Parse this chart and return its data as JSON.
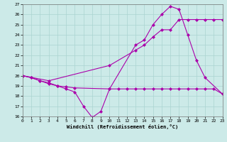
{
  "xlabel": "Windchill (Refroidissement éolien,°C)",
  "xlim": [
    0,
    23
  ],
  "ylim": [
    16,
    27
  ],
  "yticks": [
    16,
    17,
    18,
    19,
    20,
    21,
    22,
    23,
    24,
    25,
    26,
    27
  ],
  "xticks": [
    0,
    1,
    2,
    3,
    4,
    5,
    6,
    7,
    8,
    9,
    10,
    11,
    12,
    13,
    14,
    15,
    16,
    17,
    18,
    19,
    20,
    21,
    22,
    23
  ],
  "bg_color": "#cceae8",
  "line_color": "#aa00aa",
  "grid_color": "#aad4d0",
  "lines": [
    {
      "x": [
        0,
        1,
        2,
        3,
        4,
        5,
        6,
        7,
        8,
        9,
        10,
        13,
        14,
        15,
        16,
        17,
        18,
        19,
        20,
        21,
        23
      ],
      "y": [
        20,
        19.8,
        19.5,
        19.3,
        19.0,
        18.7,
        18.4,
        17.0,
        15.9,
        16.5,
        18.7,
        23.0,
        23.5,
        25.0,
        26.0,
        26.8,
        26.5,
        24.0,
        21.5,
        19.8,
        18.2
      ]
    },
    {
      "x": [
        0,
        1,
        2,
        3,
        4,
        5,
        6,
        10,
        11,
        12,
        13,
        14,
        15,
        16,
        17,
        18,
        19,
        20,
        21,
        22,
        23
      ],
      "y": [
        20,
        19.8,
        19.5,
        19.2,
        19.0,
        18.9,
        18.8,
        18.7,
        18.7,
        18.7,
        18.7,
        18.7,
        18.7,
        18.7,
        18.7,
        18.7,
        18.7,
        18.7,
        18.7,
        18.7,
        18.2
      ]
    },
    {
      "x": [
        0,
        3,
        10,
        13,
        14,
        15,
        16,
        17,
        18,
        19,
        20,
        21,
        22,
        23
      ],
      "y": [
        20,
        19.5,
        21.0,
        22.5,
        23.0,
        23.8,
        24.5,
        24.5,
        25.5,
        25.5,
        25.5,
        25.5,
        25.5,
        25.5
      ]
    }
  ]
}
